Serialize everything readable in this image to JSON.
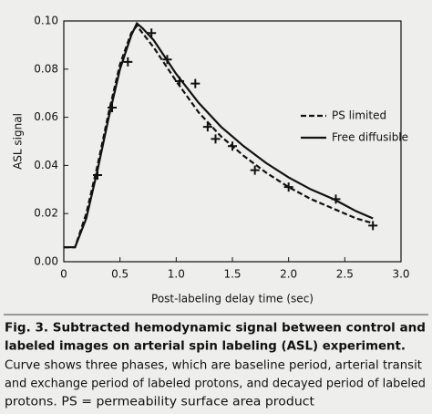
{
  "chart_data": {
    "type": "line",
    "xlabel": "Post-labeling delay time (sec)",
    "ylabel": "ASL signal",
    "xlim": [
      0,
      3.0
    ],
    "ylim": [
      0,
      0.1
    ],
    "xticks": [
      0,
      0.5,
      {
        "value": 1.0,
        "label": "1.0"
      },
      1.5,
      {
        "value": 2.0,
        "label": "2.0"
      },
      2.5,
      {
        "value": 3.0,
        "label": "3.0"
      }
    ],
    "yticks": [
      {
        "value": 0,
        "label": "0.00"
      },
      {
        "value": 0.02,
        "label": "0.02"
      },
      {
        "value": 0.04,
        "label": "0.04"
      },
      {
        "value": 0.06,
        "label": "0.06"
      },
      {
        "value": 0.08,
        "label": "0.08"
      },
      {
        "value": 0.1,
        "label": "0.10"
      }
    ],
    "legend": "right",
    "x": [
      0,
      0.1,
      0.2,
      0.3,
      0.4,
      0.5,
      0.6,
      0.65,
      0.7,
      0.8,
      1.0,
      1.2,
      1.4,
      1.6,
      1.8,
      2.0,
      2.2,
      2.4,
      2.6,
      2.75
    ],
    "series": [
      {
        "name": "PS limited",
        "color": "#111111",
        "dash": true,
        "values": [
          0.006,
          0.006,
          0.02,
          0.04,
          0.062,
          0.082,
          0.095,
          0.098,
          0.095,
          0.089,
          0.075,
          0.062,
          0.052,
          0.044,
          0.037,
          0.031,
          0.026,
          0.022,
          0.018,
          0.016
        ]
      },
      {
        "name": "Free diffusible",
        "color": "#111111",
        "dash": false,
        "values": [
          0.006,
          0.006,
          0.018,
          0.038,
          0.06,
          0.08,
          0.094,
          0.099,
          0.097,
          0.092,
          0.078,
          0.066,
          0.056,
          0.048,
          0.041,
          0.035,
          0.03,
          0.026,
          0.021,
          0.018
        ]
      }
    ],
    "points": {
      "x": [
        0.3,
        0.43,
        0.57,
        0.78,
        0.92,
        1.03,
        1.17,
        1.28,
        1.35,
        1.5,
        1.7,
        2.0,
        2.42,
        2.75
      ],
      "values": [
        0.036,
        0.064,
        0.083,
        0.095,
        0.084,
        0.075,
        0.074,
        0.056,
        0.051,
        0.048,
        0.038,
        0.031,
        0.026,
        0.015
      ]
    }
  },
  "caption": {
    "title": [
      "Fig. 3. Subtracted hemodynamic signal between control and",
      "labeled images on arterial spin labeling (ASL) experiment."
    ],
    "body": [
      "Curve shows three phases, which are baseline period, arterial transit",
      "and exchange period of labeled protons, and decayed period of labeled",
      "protons. PS = permeability surface area product"
    ]
  }
}
